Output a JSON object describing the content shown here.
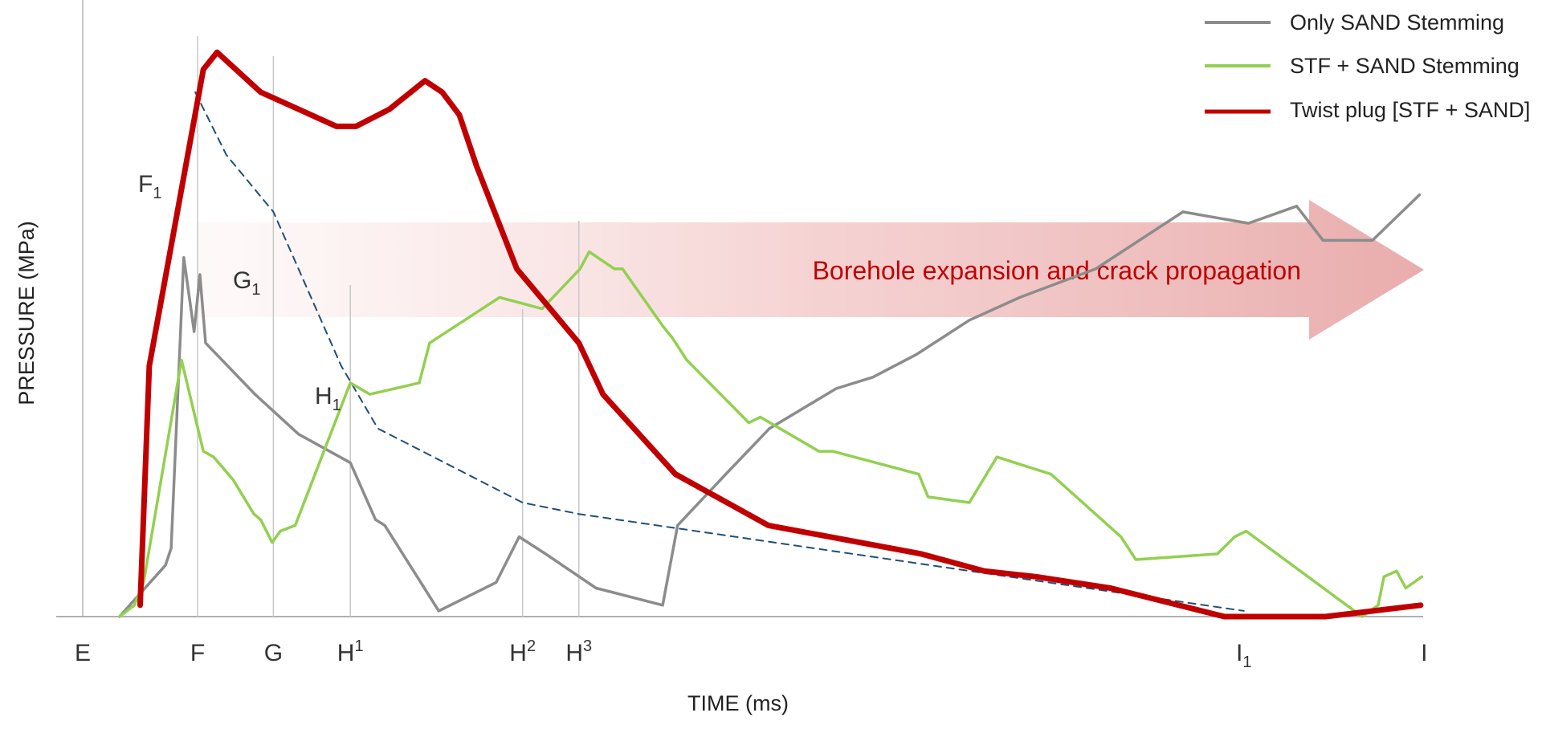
{
  "chart_data": {
    "type": "line",
    "title": "",
    "xlabel": "TIME (ms)",
    "ylabel": "PRESSURE (MPa)",
    "grid": false,
    "legend_position": "top-right",
    "x_ticks": [
      {
        "id": "E",
        "base": "E",
        "sub": "",
        "sup": "",
        "x": 0
      },
      {
        "id": "F",
        "base": "F",
        "sub": "",
        "sup": "",
        "x": 100
      },
      {
        "id": "G",
        "base": "G",
        "sub": "",
        "sup": "",
        "x": 166
      },
      {
        "id": "H1",
        "base": "H",
        "sub": "",
        "sup": "1",
        "x": 233
      },
      {
        "id": "H2",
        "base": "H",
        "sub": "",
        "sup": "2",
        "x": 383
      },
      {
        "id": "H3",
        "base": "H",
        "sub": "",
        "sup": "3",
        "x": 432
      },
      {
        "id": "I1",
        "base": "I",
        "sub": "1",
        "sup": "",
        "x": 1011
      },
      {
        "id": "I",
        "base": "I",
        "sub": "",
        "sup": "",
        "x": 1168
      }
    ],
    "annotations": [
      {
        "id": "F1",
        "base": "F",
        "sub": "1"
      },
      {
        "id": "G1",
        "base": "G",
        "sub": "1"
      },
      {
        "id": "H1-point",
        "base": "H",
        "sub": "1"
      }
    ],
    "arrow_label": "Borehole expansion and crack propagation",
    "series": [
      {
        "name": "Only SAND Stemming",
        "color": "#8c8c8c",
        "style": "solid",
        "x": [
          32,
          72,
          77,
          88,
          97,
          102,
          107,
          150,
          188,
          233,
          255,
          263,
          310,
          360,
          380,
          403,
          447,
          505,
          518,
          560,
          598,
          656,
          688,
          726,
          772,
          816,
          882,
          958,
          1015,
          1057,
          1080,
          1123,
          1164
        ],
        "y": [
          0,
          9,
          12,
          63,
          50,
          60,
          48,
          39,
          32,
          27,
          17,
          16,
          1,
          6,
          14,
          11,
          5,
          2,
          16,
          25,
          33,
          40,
          42,
          46,
          52,
          56,
          61,
          71,
          69,
          72,
          66,
          66,
          74
        ]
      },
      {
        "name": "STF + SAND Stemming",
        "color": "#92d050",
        "style": "solid",
        "x": [
          32,
          45,
          53,
          86,
          105,
          114,
          131,
          137,
          149,
          155,
          165,
          172,
          185,
          233,
          250,
          293,
          302,
          363,
          400,
          433,
          441,
          463,
          470,
          505,
          513,
          526,
          580,
          590,
          641,
          653,
          728,
          736,
          772,
          796,
          843,
          904,
          917,
          988,
          1003,
          1013,
          1114,
          1128,
          1133,
          1144,
          1152,
          1166
        ],
        "y": [
          0,
          2,
          6,
          45,
          29,
          28,
          24,
          22,
          18,
          17,
          13,
          15,
          16,
          41,
          39,
          41,
          48,
          56,
          54,
          61,
          64,
          61,
          61,
          51,
          49,
          45,
          34,
          35,
          29,
          29,
          25,
          21,
          20,
          28,
          25,
          14,
          10,
          11,
          14,
          15,
          0,
          2,
          7,
          8,
          5,
          7
        ]
      },
      {
        "name": "Twist plug [STF + SAND]",
        "color": "#c00000",
        "style": "solid",
        "x": [
          50,
          58,
          105,
          117,
          155,
          221,
          238,
          267,
          298,
          313,
          328,
          343,
          378,
          432,
          453,
          516,
          597,
          730,
          785,
          830,
          895,
          994,
          1082,
          1165
        ],
        "y": [
          2,
          44,
          96,
          99,
          92,
          86,
          86,
          89,
          94,
          92,
          88,
          79,
          61,
          48,
          39,
          25,
          16,
          11,
          8,
          7,
          5,
          0,
          0,
          2
        ]
      },
      {
        "name": "",
        "color": "#1f4e79",
        "style": "dashed",
        "x": [
          98,
          125,
          166,
          225,
          257,
          383,
          432,
          1011
        ],
        "y": [
          92,
          81,
          71,
          44,
          33,
          20,
          18,
          1
        ]
      }
    ]
  },
  "legend": [
    {
      "label": "Only SAND Stemming",
      "color": "#8c8c8c"
    },
    {
      "label": "STF + SAND Stemming",
      "color": "#92d050"
    },
    {
      "label": "Twist plug [STF + SAND]",
      "color": "#c00000"
    }
  ]
}
